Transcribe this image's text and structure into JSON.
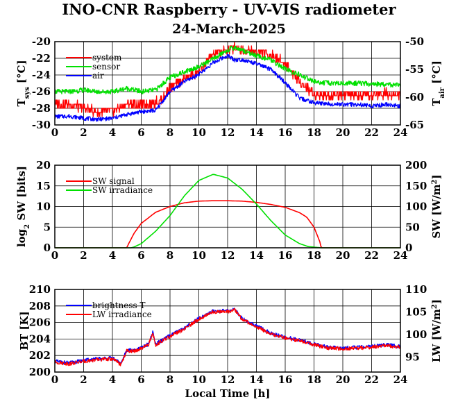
{
  "title": "INO-CNR Raspberry - UV-VIS radiometer",
  "subtitle": "24-March-2025",
  "colors": {
    "red": "#ff0000",
    "green": "#00e000",
    "blue": "#0000ff"
  },
  "chart_data": [
    {
      "type": "line",
      "ylabel": "T",
      "ylabel_sub": "sys",
      "ylabel_unit": "[°C]",
      "y2label": "T",
      "y2label_sub": "air",
      "y2label_unit": "[°C]",
      "xlim": [
        0,
        24
      ],
      "ylim": [
        -30,
        -20
      ],
      "y2lim": [
        -65,
        -50
      ],
      "xticks": [
        0,
        2,
        4,
        6,
        8,
        10,
        12,
        14,
        16,
        18,
        20,
        22,
        24
      ],
      "yticks": [
        -30,
        -28,
        -26,
        -24,
        -22,
        -20
      ],
      "y2ticks": [
        -65,
        -60,
        -55,
        -50
      ],
      "grid": true,
      "legend": "top-left",
      "series": [
        {
          "name": "system",
          "color": "#ff0000",
          "axis": "left",
          "x": [
            0,
            1,
            2,
            3,
            4,
            5,
            6,
            7,
            7.5,
            8,
            9,
            10,
            11,
            11.5,
            12,
            12.5,
            13,
            14,
            15,
            16,
            16.5,
            17,
            18,
            19,
            20,
            21,
            22,
            23,
            24
          ],
          "y": [
            -27.5,
            -27.5,
            -28,
            -28.5,
            -28.3,
            -27.5,
            -27.5,
            -27.3,
            -26.8,
            -25.5,
            -24.5,
            -23.5,
            -21.6,
            -21.3,
            -21.0,
            -20.7,
            -20.9,
            -21.2,
            -21.6,
            -22.6,
            -23.8,
            -24.8,
            -26.3,
            -26.4,
            -26.3,
            -26.6,
            -26.5,
            -26.2,
            -26.4
          ]
        },
        {
          "name": "sensor",
          "color": "#00e000",
          "axis": "left",
          "x": [
            0,
            1,
            2,
            3,
            4,
            5,
            6,
            7,
            8,
            9,
            10,
            11,
            12,
            12.5,
            13,
            14,
            15,
            16,
            17,
            18,
            19,
            20,
            21,
            22,
            23,
            24
          ],
          "y": [
            -26.0,
            -26.0,
            -25.8,
            -26.0,
            -26.0,
            -25.6,
            -26.0,
            -25.8,
            -24.3,
            -23.6,
            -23.0,
            -22.1,
            -21.0,
            -20.7,
            -21.0,
            -21.7,
            -22.2,
            -23.3,
            -24.0,
            -24.8,
            -25.0,
            -25.0,
            -25.0,
            -25.1,
            -25.1,
            -25.3
          ]
        },
        {
          "name": "air",
          "color": "#0000ff",
          "axis": "right",
          "x": [
            0,
            1,
            2,
            3,
            4,
            5,
            6,
            7,
            8,
            9,
            10,
            11,
            12,
            12.5,
            13,
            14,
            15,
            16,
            17,
            18,
            19,
            20,
            21,
            22,
            23,
            24
          ],
          "y": [
            -63.5,
            -63.4,
            -63.8,
            -64.0,
            -63.8,
            -63.1,
            -62.6,
            -62.4,
            -59.0,
            -57.2,
            -55.9,
            -53.8,
            -52.5,
            -53.3,
            -53.2,
            -54.0,
            -55.0,
            -57.4,
            -60.2,
            -61.0,
            -61.2,
            -61.3,
            -61.3,
            -61.6,
            -61.3,
            -61.6
          ]
        }
      ]
    },
    {
      "type": "line",
      "ylabel": "log",
      "ylabel_sub": "2",
      "ylabel_unit": "SW [bits]",
      "y2label": "SW [W/m",
      "y2label_sup": "2",
      "y2label_end": "]",
      "xlim": [
        0,
        24
      ],
      "ylim": [
        0,
        20
      ],
      "y2lim": [
        0,
        200
      ],
      "xticks": [
        0,
        2,
        4,
        6,
        8,
        10,
        12,
        14,
        16,
        18,
        20,
        22,
        24
      ],
      "yticks": [
        0,
        5,
        10,
        15,
        20
      ],
      "y2ticks": [
        0,
        50,
        100,
        150,
        200
      ],
      "grid": true,
      "legend": "top-left",
      "series": [
        {
          "name": "SW signal",
          "color": "#ff0000",
          "axis": "left",
          "x": [
            0,
            5.0,
            5.1,
            5.5,
            6,
            7,
            8,
            9,
            10,
            11,
            12,
            13,
            14,
            15,
            16,
            17,
            17.5,
            18,
            18.4,
            18.5,
            24
          ],
          "y": [
            0,
            0,
            0.8,
            3.5,
            5.9,
            8.6,
            10.0,
            10.9,
            11.3,
            11.4,
            11.4,
            11.3,
            11.0,
            10.5,
            9.8,
            8.5,
            7.4,
            5.0,
            1.5,
            0,
            0
          ]
        },
        {
          "name": "SW irradiance",
          "color": "#00e000",
          "axis": "right",
          "x": [
            0,
            5.3,
            5.5,
            6,
            7,
            8,
            9,
            10,
            11,
            12,
            13,
            14,
            15,
            16,
            17,
            17.6,
            18.5,
            24
          ],
          "y": [
            0,
            0,
            2,
            10,
            40,
            78,
            126,
            163,
            178,
            169,
            142,
            106,
            66,
            31,
            10,
            3,
            0,
            0
          ]
        }
      ]
    },
    {
      "type": "line",
      "ylabel": "BT [K]",
      "y2label": "LW [W/m",
      "y2label_sup": "2",
      "y2label_end": "]",
      "xlabel": "Local Time [h]",
      "xlim": [
        0,
        24
      ],
      "ylim": [
        200,
        210
      ],
      "y2lim": [
        91.67,
        110
      ],
      "xticks": [
        0,
        2,
        4,
        6,
        8,
        10,
        12,
        14,
        16,
        18,
        20,
        22,
        24
      ],
      "yticks": [
        200,
        202,
        204,
        206,
        208,
        210
      ],
      "y2ticks": [
        95,
        100,
        105,
        110
      ],
      "grid": true,
      "legend": "top-left",
      "series": [
        {
          "name": "brightness T",
          "color": "#0000ff",
          "axis": "left",
          "x": [
            0,
            1,
            2,
            3,
            4,
            4.6,
            5,
            5.5,
            6,
            6.5,
            6.8,
            7,
            8,
            9,
            10,
            11,
            12,
            12.5,
            13,
            14,
            15,
            16,
            17,
            18,
            19,
            20,
            21,
            22,
            23,
            24
          ],
          "y": [
            201.3,
            201.1,
            201.4,
            201.6,
            201.7,
            201.0,
            202.7,
            202.6,
            202.9,
            203.4,
            204.8,
            203.4,
            204.4,
            205.3,
            206.5,
            207.4,
            207.4,
            207.6,
            206.5,
            205.6,
            204.7,
            204.2,
            203.9,
            203.4,
            203.0,
            202.9,
            203.0,
            203.1,
            203.3,
            203.1
          ]
        },
        {
          "name": "LW irradiance",
          "color": "#ff0000",
          "axis": "left",
          "x": [
            0,
            1,
            2,
            3,
            4,
            4.6,
            5,
            5.5,
            6,
            6.5,
            6.8,
            7,
            8,
            9,
            10,
            11,
            12,
            12.5,
            13,
            14,
            15,
            16,
            17,
            18,
            19,
            20,
            21,
            22,
            23,
            24
          ],
          "y": [
            201.2,
            201.0,
            201.3,
            201.5,
            201.6,
            200.9,
            202.6,
            202.5,
            202.8,
            203.3,
            204.7,
            203.3,
            204.3,
            205.2,
            206.4,
            207.3,
            207.3,
            207.5,
            206.4,
            205.5,
            204.6,
            204.1,
            203.8,
            203.3,
            202.9,
            202.8,
            202.9,
            203.0,
            203.2,
            203.0
          ]
        }
      ]
    }
  ]
}
